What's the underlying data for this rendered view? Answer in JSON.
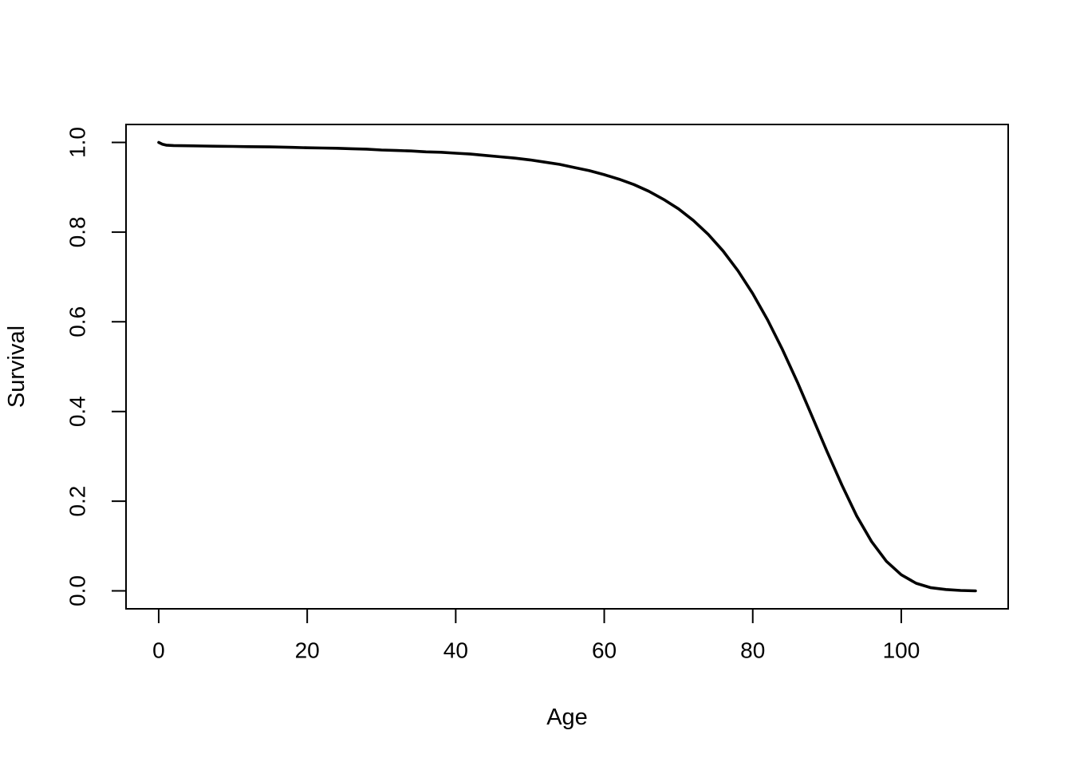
{
  "figure": {
    "background": "#ffffff",
    "foreground": "#000000"
  },
  "chart_data": {
    "type": "line",
    "title": "",
    "xlabel": "Age",
    "ylabel": "Survival",
    "xlim": [
      0,
      110
    ],
    "ylim": [
      0,
      1
    ],
    "x_ticks": [
      0,
      20,
      40,
      60,
      80,
      100
    ],
    "x_tick_labels": [
      "0",
      "20",
      "40",
      "60",
      "80",
      "100"
    ],
    "y_ticks": [
      0,
      0.2,
      0.4,
      0.6,
      0.8,
      1
    ],
    "y_tick_labels": [
      "0.0",
      "0.2",
      "0.4",
      "0.6",
      "0.8",
      "1.0"
    ],
    "grid": false,
    "legend": null,
    "axis_expansion": 0.04,
    "series": [
      {
        "name": "survival-curve",
        "color": "#000000",
        "line_width": 3.6,
        "x": [
          0,
          0.5,
          1,
          2,
          4,
          6,
          8,
          10,
          12,
          15,
          18,
          20,
          22,
          24,
          26,
          28,
          30,
          32,
          34,
          36,
          38,
          40,
          42,
          44,
          46,
          48,
          50,
          52,
          54,
          56,
          58,
          60,
          62,
          64,
          66,
          68,
          70,
          72,
          74,
          76,
          78,
          80,
          82,
          84,
          86,
          88,
          90,
          92,
          94,
          96,
          98,
          100,
          102,
          104,
          106,
          108,
          110
        ],
        "y": [
          1.0,
          0.996,
          0.994,
          0.993,
          0.9925,
          0.992,
          0.9915,
          0.991,
          0.9905,
          0.99,
          0.989,
          0.988,
          0.9875,
          0.987,
          0.986,
          0.985,
          0.983,
          0.982,
          0.981,
          0.979,
          0.978,
          0.976,
          0.974,
          0.971,
          0.968,
          0.965,
          0.961,
          0.956,
          0.951,
          0.944,
          0.937,
          0.928,
          0.918,
          0.906,
          0.891,
          0.873,
          0.852,
          0.826,
          0.795,
          0.758,
          0.714,
          0.663,
          0.604,
          0.538,
          0.466,
          0.389,
          0.311,
          0.236,
          0.167,
          0.11,
          0.066,
          0.036,
          0.017,
          0.007,
          0.003,
          0.001,
          0.0
        ]
      }
    ]
  }
}
